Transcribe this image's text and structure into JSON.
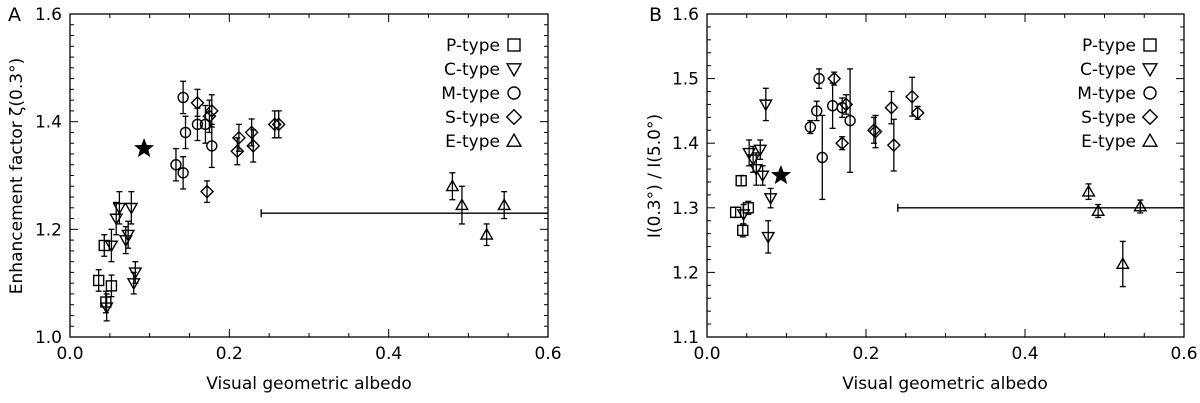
{
  "chart_data": [
    {
      "type": "scatter",
      "panel": "A",
      "xlabel": "Visual geometric albedo",
      "ylabel": "Enhancement factor ζ(0.3°)",
      "xlim": [
        0.0,
        0.6
      ],
      "ylim": [
        1.0,
        1.6
      ],
      "xticks": [
        "0.0",
        "0.2",
        "0.4",
        "0.6"
      ],
      "yticks": [
        "1.0",
        "1.2",
        "1.4",
        "1.6"
      ],
      "legend": [
        "P-type",
        "C-type",
        "M-type",
        "S-type",
        "E-type"
      ],
      "series": [
        {
          "name": "P-type",
          "marker": "square",
          "points": [
            {
              "x": 0.036,
              "y": 1.105,
              "err": 0.02
            },
            {
              "x": 0.043,
              "y": 1.17,
              "err": 0.02
            },
            {
              "x": 0.045,
              "y": 1.065,
              "err": 0.02
            },
            {
              "x": 0.052,
              "y": 1.095,
              "err": 0.02
            }
          ]
        },
        {
          "name": "C-type",
          "marker": "triangle-down",
          "points": [
            {
              "x": 0.046,
              "y": 1.055,
              "err": 0.025
            },
            {
              "x": 0.052,
              "y": 1.17,
              "err": 0.03
            },
            {
              "x": 0.058,
              "y": 1.22,
              "err": 0.03
            },
            {
              "x": 0.062,
              "y": 1.24,
              "err": 0.03
            },
            {
              "x": 0.07,
              "y": 1.18,
              "err": 0.025
            },
            {
              "x": 0.073,
              "y": 1.19,
              "err": 0.025
            },
            {
              "x": 0.077,
              "y": 1.24,
              "err": 0.03
            },
            {
              "x": 0.08,
              "y": 1.1,
              "err": 0.02
            },
            {
              "x": 0.082,
              "y": 1.12,
              "err": 0.02
            }
          ]
        },
        {
          "name": "M-type",
          "marker": "circle",
          "points": [
            {
              "x": 0.133,
              "y": 1.32,
              "err": 0.03
            },
            {
              "x": 0.142,
              "y": 1.305,
              "err": 0.03
            },
            {
              "x": 0.142,
              "y": 1.445,
              "err": 0.03
            },
            {
              "x": 0.145,
              "y": 1.38,
              "err": 0.03
            },
            {
              "x": 0.16,
              "y": 1.395,
              "err": 0.03
            },
            {
              "x": 0.17,
              "y": 1.395,
              "err": 0.035
            },
            {
              "x": 0.178,
              "y": 1.355,
              "err": 0.04
            }
          ]
        },
        {
          "name": "S-type",
          "marker": "diamond",
          "points": [
            {
              "x": 0.16,
              "y": 1.435,
              "err": 0.025
            },
            {
              "x": 0.172,
              "y": 1.27,
              "err": 0.02
            },
            {
              "x": 0.175,
              "y": 1.41,
              "err": 0.03
            },
            {
              "x": 0.178,
              "y": 1.42,
              "err": 0.03
            },
            {
              "x": 0.21,
              "y": 1.345,
              "err": 0.025
            },
            {
              "x": 0.212,
              "y": 1.37,
              "err": 0.025
            },
            {
              "x": 0.228,
              "y": 1.38,
              "err": 0.025
            },
            {
              "x": 0.23,
              "y": 1.355,
              "err": 0.03
            },
            {
              "x": 0.257,
              "y": 1.395,
              "err": 0.025
            },
            {
              "x": 0.262,
              "y": 1.395,
              "err": 0.025
            }
          ]
        },
        {
          "name": "E-type",
          "marker": "triangle-up",
          "points": [
            {
              "x": 0.48,
              "y": 1.28,
              "err": 0.025
            },
            {
              "x": 0.492,
              "y": 1.245,
              "err": 0.035
            },
            {
              "x": 0.523,
              "y": 1.19,
              "err": 0.02
            },
            {
              "x": 0.545,
              "y": 1.245,
              "err": 0.025
            }
          ]
        }
      ],
      "star": {
        "x": 0.093,
        "y": 1.35
      },
      "hline": {
        "x1": 0.24,
        "x2": 0.6,
        "y": 1.23
      }
    },
    {
      "type": "scatter",
      "panel": "B",
      "xlabel": "Visual geometric albedo",
      "ylabel": "I(0.3°) / I(5.0°)",
      "xlim": [
        0.0,
        0.6
      ],
      "ylim": [
        1.1,
        1.6
      ],
      "xticks": [
        "0.0",
        "0.2",
        "0.4",
        "0.6"
      ],
      "yticks": [
        "1.1",
        "1.2",
        "1.3",
        "1.4",
        "1.5",
        "1.6"
      ],
      "legend": [
        "P-type",
        "C-type",
        "M-type",
        "S-type",
        "E-type"
      ],
      "series": [
        {
          "name": "P-type",
          "marker": "square",
          "points": [
            {
              "x": 0.036,
              "y": 1.293,
              "err": 0.008
            },
            {
              "x": 0.043,
              "y": 1.342,
              "err": 0.008
            },
            {
              "x": 0.045,
              "y": 1.265,
              "err": 0.01
            },
            {
              "x": 0.052,
              "y": 1.3,
              "err": 0.01
            }
          ]
        },
        {
          "name": "C-type",
          "marker": "triangle-down",
          "points": [
            {
              "x": 0.046,
              "y": 1.29,
              "err": 0.015
            },
            {
              "x": 0.053,
              "y": 1.385,
              "err": 0.02
            },
            {
              "x": 0.058,
              "y": 1.375,
              "err": 0.02
            },
            {
              "x": 0.062,
              "y": 1.36,
              "err": 0.025
            },
            {
              "x": 0.067,
              "y": 1.39,
              "err": 0.015
            },
            {
              "x": 0.07,
              "y": 1.35,
              "err": 0.015
            },
            {
              "x": 0.074,
              "y": 1.46,
              "err": 0.025
            },
            {
              "x": 0.077,
              "y": 1.255,
              "err": 0.025
            },
            {
              "x": 0.08,
              "y": 1.315,
              "err": 0.015
            }
          ]
        },
        {
          "name": "M-type",
          "marker": "circle",
          "points": [
            {
              "x": 0.13,
              "y": 1.425,
              "err": 0.01
            },
            {
              "x": 0.138,
              "y": 1.45,
              "err": 0.015
            },
            {
              "x": 0.141,
              "y": 1.5,
              "err": 0.015
            },
            {
              "x": 0.145,
              "y": 1.378,
              "err": 0.065
            },
            {
              "x": 0.158,
              "y": 1.458,
              "err": 0.035
            },
            {
              "x": 0.17,
              "y": 1.455,
              "err": 0.015
            },
            {
              "x": 0.18,
              "y": 1.435,
              "err": 0.08
            }
          ]
        },
        {
          "name": "S-type",
          "marker": "diamond",
          "points": [
            {
              "x": 0.16,
              "y": 1.5,
              "err": 0.01
            },
            {
              "x": 0.17,
              "y": 1.4,
              "err": 0.01
            },
            {
              "x": 0.175,
              "y": 1.46,
              "err": 0.015
            },
            {
              "x": 0.21,
              "y": 1.42,
              "err": 0.02
            },
            {
              "x": 0.212,
              "y": 1.418,
              "err": 0.025
            },
            {
              "x": 0.232,
              "y": 1.455,
              "err": 0.025
            },
            {
              "x": 0.235,
              "y": 1.397,
              "err": 0.04
            },
            {
              "x": 0.258,
              "y": 1.472,
              "err": 0.03
            },
            {
              "x": 0.265,
              "y": 1.447,
              "err": 0.01
            }
          ]
        },
        {
          "name": "E-type",
          "marker": "triangle-up",
          "points": [
            {
              "x": 0.48,
              "y": 1.325,
              "err": 0.012
            },
            {
              "x": 0.492,
              "y": 1.295,
              "err": 0.01
            },
            {
              "x": 0.523,
              "y": 1.213,
              "err": 0.035
            },
            {
              "x": 0.545,
              "y": 1.302,
              "err": 0.01
            }
          ]
        }
      ],
      "star": {
        "x": 0.093,
        "y": 1.35
      },
      "hline": {
        "x1": 0.24,
        "x2": 0.6,
        "y": 1.3
      }
    }
  ]
}
